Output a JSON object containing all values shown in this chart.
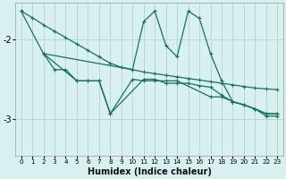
{
  "xlabel": "Humidex (Indice chaleur)",
  "bg_color": "#d8f0f0",
  "grid_color": "#b8d8d8",
  "line_color": "#1a7060",
  "xlim": [
    -0.5,
    23.5
  ],
  "ylim": [
    -3.45,
    -1.55
  ],
  "yticks": [
    -3.0,
    -2.0
  ],
  "ytick_labels": [
    "-3",
    "-2"
  ],
  "xticks": [
    0,
    1,
    2,
    3,
    4,
    5,
    6,
    7,
    8,
    9,
    10,
    11,
    12,
    13,
    14,
    15,
    16,
    17,
    18,
    19,
    20,
    21,
    22,
    23
  ],
  "line1_x": [
    0,
    1,
    2,
    3,
    4,
    5,
    6,
    7,
    8,
    9,
    10,
    11,
    12,
    13,
    14,
    15,
    16,
    17,
    18,
    19,
    20,
    21,
    22,
    23
  ],
  "line1_y": [
    -1.65,
    -1.73,
    -1.82,
    -1.9,
    -1.98,
    -2.06,
    -2.14,
    -2.22,
    -2.3,
    -2.35,
    -2.38,
    -2.41,
    -2.43,
    -2.45,
    -2.47,
    -2.49,
    -2.51,
    -2.53,
    -2.55,
    -2.57,
    -2.59,
    -2.61,
    -2.62,
    -2.63
  ],
  "line2_x": [
    2,
    3,
    4,
    5,
    6,
    7,
    8,
    10,
    11,
    12,
    13,
    14,
    17,
    18,
    19,
    20,
    21,
    22,
    23
  ],
  "line2_y": [
    -2.18,
    -2.38,
    -2.38,
    -2.52,
    -2.52,
    -2.52,
    -2.93,
    -2.5,
    -2.52,
    -2.52,
    -2.52,
    -2.52,
    -2.72,
    -2.72,
    -2.78,
    -2.82,
    -2.87,
    -2.93,
    -2.93
  ],
  "line3_x": [
    0,
    2,
    5,
    6,
    7,
    8,
    11,
    12,
    13,
    14,
    15,
    16,
    17,
    18,
    19,
    20,
    21,
    22,
    23
  ],
  "line3_y": [
    -1.65,
    -2.18,
    -2.52,
    -2.52,
    -2.52,
    -2.93,
    -2.5,
    -2.5,
    -2.55,
    -2.55,
    -2.55,
    -2.58,
    -2.6,
    -2.7,
    -2.78,
    -2.82,
    -2.87,
    -2.93,
    -2.93
  ],
  "line4_x": [
    2,
    10,
    11,
    12,
    13,
    14,
    15,
    16,
    17,
    18,
    19,
    20,
    21,
    22,
    23
  ],
  "line4_y": [
    -2.18,
    -2.38,
    -1.78,
    -1.65,
    -2.08,
    -2.22,
    -1.65,
    -1.74,
    -2.18,
    -2.52,
    -2.78,
    -2.82,
    -2.87,
    -2.96,
    -2.96
  ]
}
